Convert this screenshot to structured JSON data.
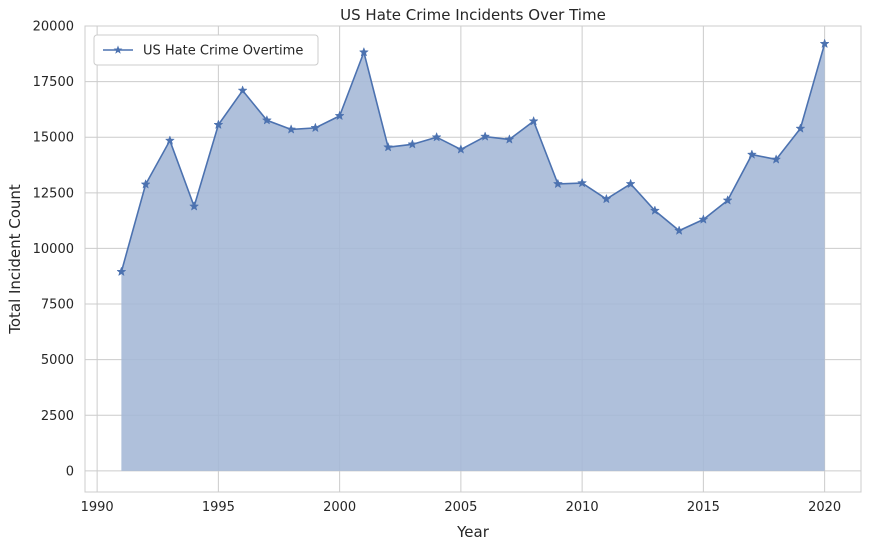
{
  "chart_data": {
    "type": "area",
    "title": "US Hate Crime Incidents Over Time",
    "xlabel": "Year",
    "ylabel": "Total Incident Count",
    "xlim": [
      1989.5,
      2021.5
    ],
    "ylim": [
      -950,
      20000
    ],
    "xticks": [
      1990,
      1995,
      2000,
      2005,
      2010,
      2015,
      2020
    ],
    "yticks": [
      0,
      2500,
      5000,
      7500,
      10000,
      12500,
      15000,
      17500,
      20000
    ],
    "grid": true,
    "legend_position": "top-left",
    "series": [
      {
        "name": "US Hate Crime Overtime",
        "marker": "star",
        "line_color": "#4c72b0",
        "fill_color": "#a4b7d6",
        "x": [
          1991,
          1992,
          1993,
          1994,
          1995,
          1996,
          1997,
          1998,
          1999,
          2000,
          2001,
          2002,
          2003,
          2004,
          2005,
          2006,
          2007,
          2008,
          2009,
          2010,
          2011,
          2012,
          2013,
          2014,
          2015,
          2016,
          2017,
          2018,
          2019,
          2020
        ],
        "y": [
          8950,
          12880,
          14850,
          11890,
          15560,
          17100,
          15760,
          15350,
          15420,
          15960,
          18820,
          14550,
          14680,
          15000,
          14450,
          15030,
          14900,
          15720,
          12900,
          12940,
          12220,
          12900,
          11700,
          10800,
          11300,
          12160,
          14220,
          14000,
          15390,
          19200
        ]
      }
    ]
  }
}
